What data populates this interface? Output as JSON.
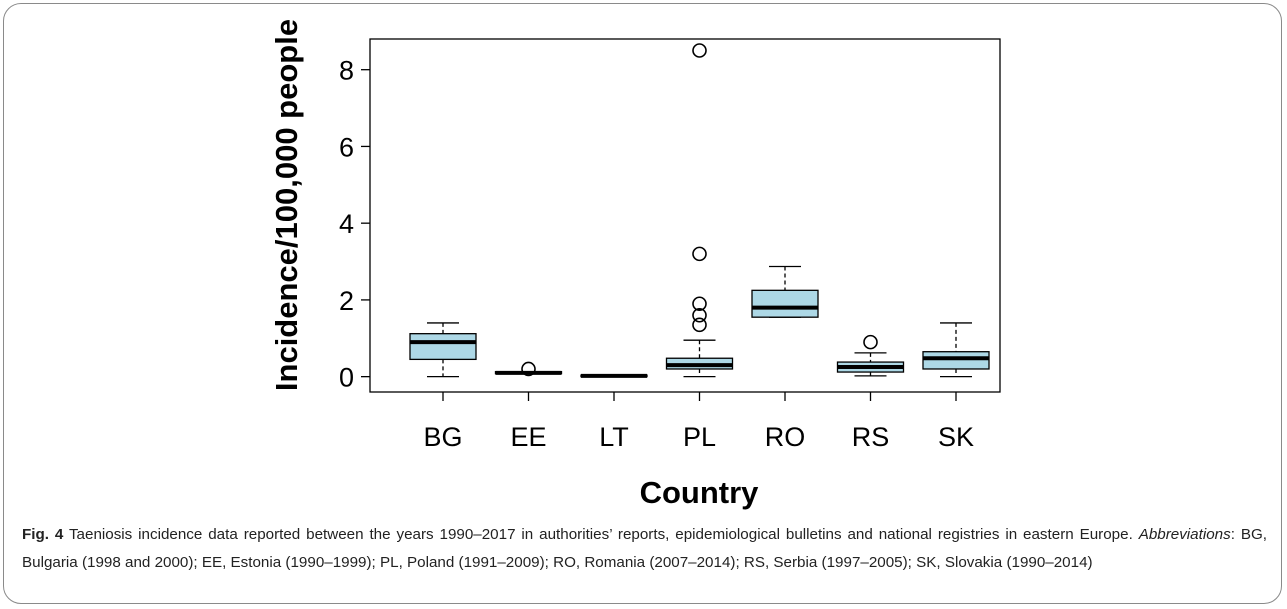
{
  "chart_data": {
    "type": "boxplot",
    "xlabel": "Country",
    "ylabel": "Incidence/100,000 people",
    "ylim": [
      -0.4,
      8.8
    ],
    "yticks": [
      0,
      2,
      4,
      6,
      8
    ],
    "colors": {
      "box_fill": "#add8e6",
      "stroke": "#000000"
    },
    "categories": [
      "BG",
      "EE",
      "LT",
      "PL",
      "RO",
      "RS",
      "SK"
    ],
    "boxes": [
      {
        "label": "BG",
        "whisker_low": 0.0,
        "q1": 0.45,
        "median": 0.9,
        "q3": 1.12,
        "whisker_high": 1.4,
        "outliers": []
      },
      {
        "label": "EE",
        "whisker_low": 0.08,
        "q1": 0.08,
        "median": 0.1,
        "q3": 0.13,
        "whisker_high": 0.13,
        "outliers": [
          0.2
        ]
      },
      {
        "label": "LT",
        "whisker_low": 0.0,
        "q1": 0.0,
        "median": 0.02,
        "q3": 0.04,
        "whisker_high": 0.04,
        "outliers": []
      },
      {
        "label": "PL",
        "whisker_low": 0.0,
        "q1": 0.2,
        "median": 0.3,
        "q3": 0.48,
        "whisker_high": 0.95,
        "outliers": [
          8.5,
          3.2,
          1.9,
          1.6,
          1.35
        ]
      },
      {
        "label": "RO",
        "whisker_low": 1.55,
        "q1": 1.55,
        "median": 1.8,
        "q3": 2.25,
        "whisker_high": 2.87,
        "outliers": []
      },
      {
        "label": "RS",
        "whisker_low": 0.02,
        "q1": 0.12,
        "median": 0.25,
        "q3": 0.38,
        "whisker_high": 0.62,
        "outliers": [
          0.9
        ]
      },
      {
        "label": "SK",
        "whisker_low": 0.0,
        "q1": 0.2,
        "median": 0.48,
        "q3": 0.65,
        "whisker_high": 1.4,
        "outliers": []
      }
    ]
  },
  "caption": {
    "fig_label": "Fig. 4",
    "text_part1": " Taeniosis incidence data reported between the years 1990–2017 in authorities’ reports, epidemiological bulletins and national registries in eastern Europe. ",
    "abbrev_label": "Abbreviations",
    "text_part2": ": BG, Bulgaria (1998 and 2000); EE, Estonia (1990–1999); PL, Poland (1991–2009); RO, Romania (2007–2014); RS, Serbia (1997–2005); SK, Slovakia (1990–2014)"
  }
}
